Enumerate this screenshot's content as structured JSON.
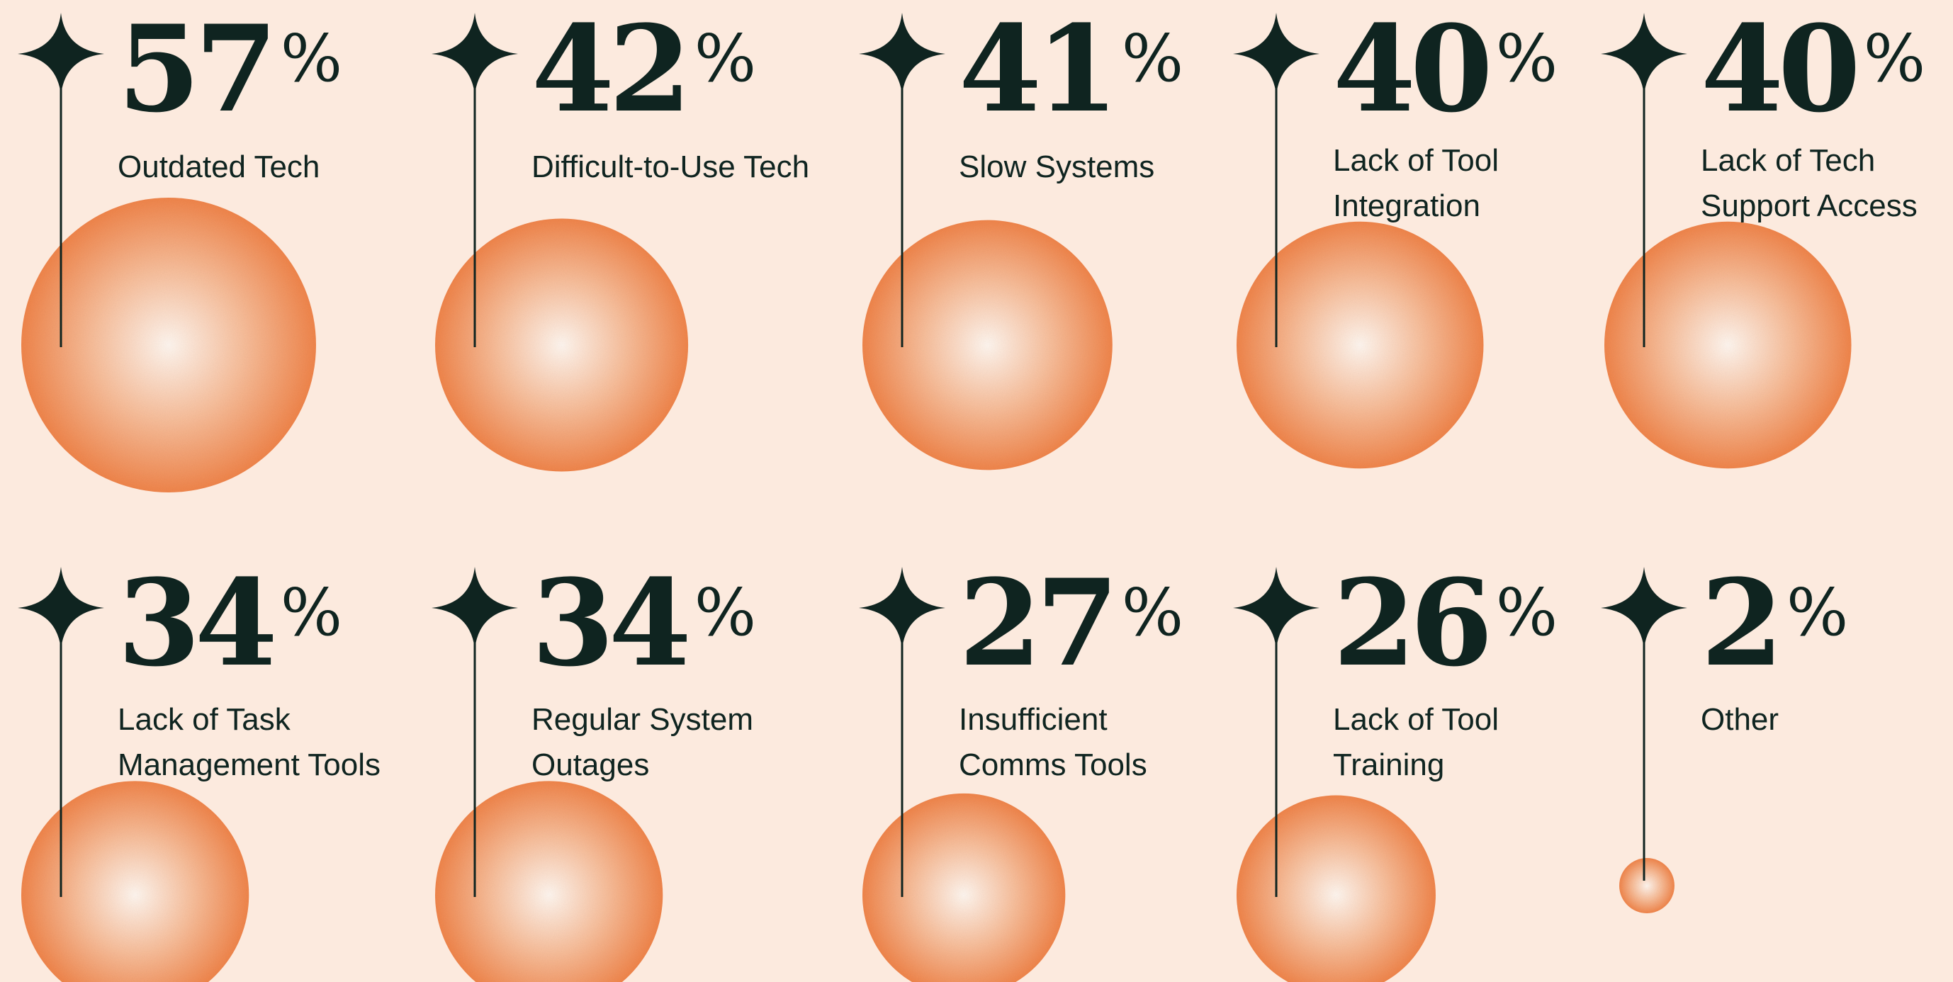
{
  "colors": {
    "background": "#fceade",
    "ink": "#0f2420",
    "bubble_edge": "#f0854b",
    "bubble_mid": "#f6aa7f",
    "bubble_center": "#fff6ef"
  },
  "chart_data": {
    "type": "bubble",
    "title": "",
    "unit": "%",
    "value_max": 57,
    "items": [
      {
        "value": 57,
        "unit": "%",
        "label": [
          "Outdated Tech"
        ]
      },
      {
        "value": 42,
        "unit": "%",
        "label": [
          "Difficult-to-Use Tech"
        ]
      },
      {
        "value": 41,
        "unit": "%",
        "label": [
          "Slow Systems"
        ]
      },
      {
        "value": 40,
        "unit": "%",
        "label": [
          "Lack of Tool",
          "Integration"
        ]
      },
      {
        "value": 40,
        "unit": "%",
        "label": [
          "Lack of Tech",
          "Support Access"
        ]
      },
      {
        "value": 34,
        "unit": "%",
        "label": [
          "Lack of Task",
          "Management Tools"
        ]
      },
      {
        "value": 34,
        "unit": "%",
        "label": [
          "Regular System",
          "Outages"
        ]
      },
      {
        "value": 27,
        "unit": "%",
        "label": [
          "Insufficient",
          "Comms Tools"
        ]
      },
      {
        "value": 26,
        "unit": "%",
        "label": [
          "Lack of Tool",
          "Training"
        ]
      },
      {
        "value": 2,
        "unit": "%",
        "label": [
          "Other"
        ]
      }
    ]
  }
}
